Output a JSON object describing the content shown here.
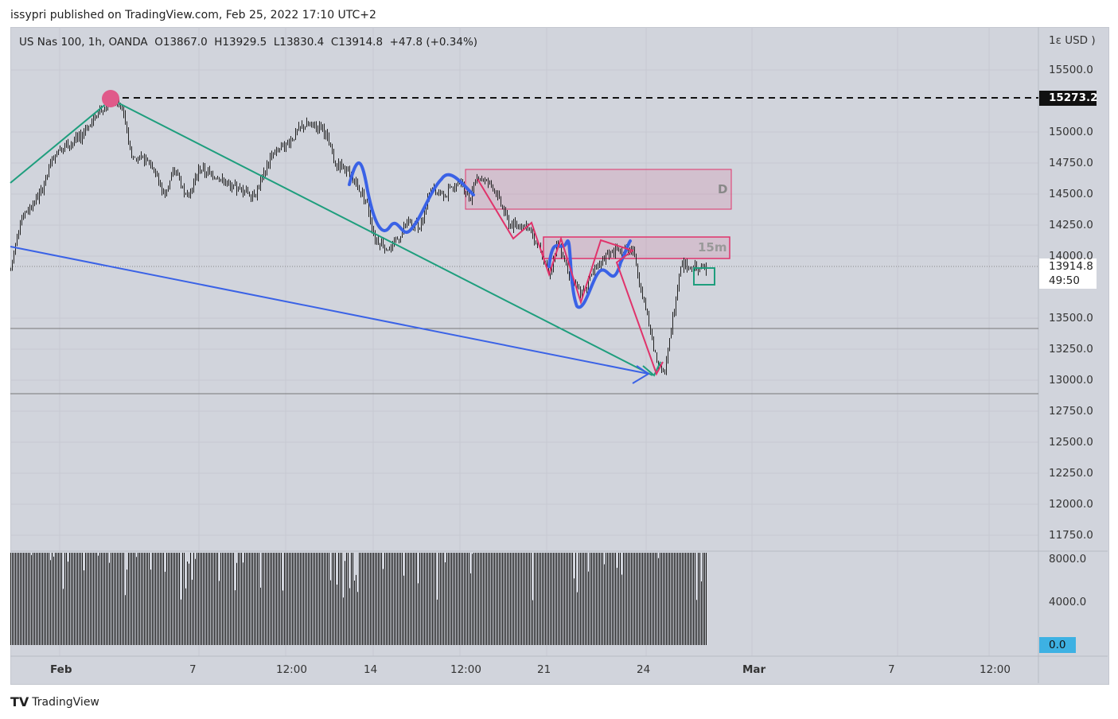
{
  "publisher_line": "issypri published on TradingView.com, Feb 25, 2022 17:10 UTC+2",
  "legend": {
    "symbol": "US Nas 100, 1h, OANDA",
    "open": "O13867.0",
    "high": "H13929.5",
    "low": "L13830.4",
    "close": "C13914.8",
    "change": "+47.8 (+0.34%)"
  },
  "price_axis": {
    "currency": "USD",
    "currency_prefix": "1ε",
    "ticks": [
      "15500.0",
      "15000.0",
      "14750.0",
      "14500.0",
      "14250.0",
      "14000.0",
      "13500.0",
      "13250.0",
      "13000.0",
      "12750.0",
      "12500.0",
      "12250.0",
      "12000.0",
      "11750.0"
    ],
    "marked_level": "15273.2",
    "last_price": "13914.8",
    "countdown": "49:50"
  },
  "volume_axis": {
    "ticks": [
      "8000.0",
      "4000.0"
    ],
    "current": "0.0"
  },
  "time_axis": [
    "Feb",
    "7",
    "12:00",
    "14",
    "12:00",
    "21",
    "24",
    "Mar",
    "7",
    "12:00"
  ],
  "drawings": {
    "zone_daily_label": "D",
    "zone_15m_label": "15m"
  },
  "colors": {
    "background": "#d1d4dc",
    "trend_green": "#1e9e7d",
    "trend_blue": "#3a62e6",
    "zone_red": "#e0336b",
    "volume_badge": "#3db1e3"
  },
  "chart_data": {
    "type": "candlestick",
    "title": "US Nas 100, 1h, OANDA",
    "ylim": [
      11600,
      15700
    ],
    "price_path": [
      [
        0,
        13885
      ],
      [
        12,
        14300
      ],
      [
        37,
        14500
      ],
      [
        57,
        14850
      ],
      [
        87,
        14950
      ],
      [
        107,
        15150
      ],
      [
        127,
        15273
      ],
      [
        142,
        15150
      ],
      [
        152,
        14800
      ],
      [
        177,
        14750
      ],
      [
        192,
        14500
      ],
      [
        207,
        14700
      ],
      [
        222,
        14450
      ],
      [
        237,
        14700
      ],
      [
        257,
        14650
      ],
      [
        277,
        14550
      ],
      [
        307,
        14500
      ],
      [
        327,
        14800
      ],
      [
        347,
        14900
      ],
      [
        367,
        15050
      ],
      [
        392,
        15050
      ],
      [
        407,
        14750
      ],
      [
        427,
        14650
      ],
      [
        447,
        14450
      ],
      [
        457,
        14150
      ],
      [
        477,
        14050
      ],
      [
        497,
        14250
      ],
      [
        517,
        14250
      ],
      [
        527,
        14550
      ],
      [
        547,
        14500
      ],
      [
        567,
        14600
      ],
      [
        577,
        14450
      ],
      [
        587,
        14650
      ],
      [
        607,
        14550
      ],
      [
        627,
        14250
      ],
      [
        647,
        14250
      ],
      [
        667,
        14050
      ],
      [
        677,
        13850
      ],
      [
        687,
        14100
      ],
      [
        702,
        13850
      ],
      [
        717,
        13700
      ],
      [
        732,
        13850
      ],
      [
        747,
        14000
      ],
      [
        767,
        14050
      ],
      [
        782,
        14050
      ],
      [
        792,
        13750
      ],
      [
        802,
        13450
      ],
      [
        812,
        13150
      ],
      [
        822,
        13050
      ],
      [
        832,
        13500
      ],
      [
        842,
        13950
      ],
      [
        857,
        13900
      ],
      [
        874,
        13915
      ]
    ]
  }
}
